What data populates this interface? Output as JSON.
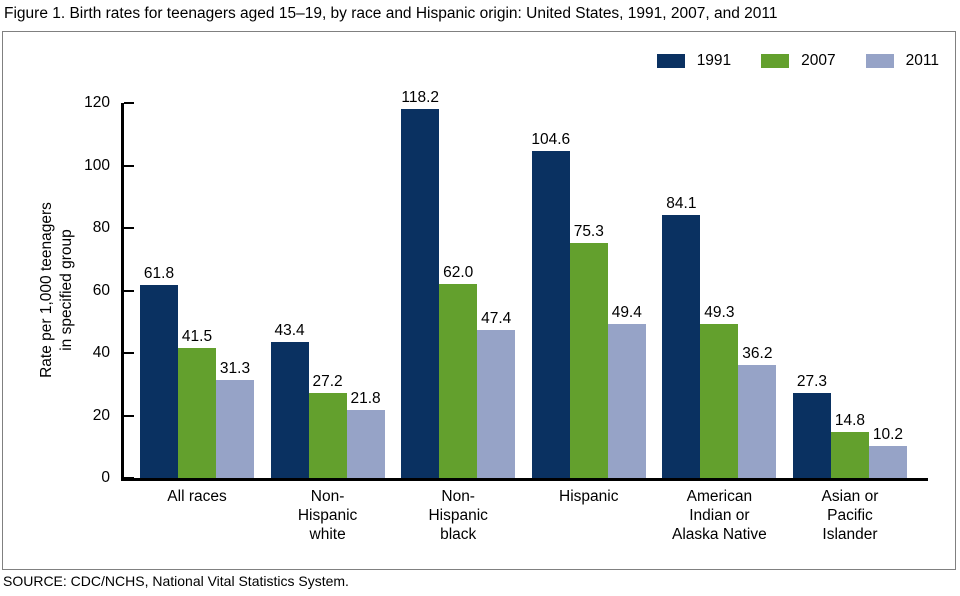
{
  "title": "Figure 1. Birth rates for teenagers aged 15–19, by race and Hispanic origin: United States, 1991, 2007, and 2011",
  "source": "SOURCE: CDC/NCHS, National Vital Statistics System.",
  "chart_data": {
    "type": "bar",
    "title": "Birth rates for teenagers aged 15–19, by race and Hispanic origin: United States, 1991, 2007, and 2011",
    "xlabel": "",
    "ylabel": "Rate per 1,000 teenagers\nin specified group",
    "ylim": [
      0,
      120
    ],
    "yticks": [
      0,
      20,
      40,
      60,
      80,
      100,
      120
    ],
    "grid": false,
    "legend_position": "top-right",
    "categories": [
      "All races",
      "Non-\nHispanic\nwhite",
      "Non-\nHispanic\nblack",
      "Hispanic",
      "American\nIndian or\nAlaska Native",
      "Asian or\nPacific\nIslander"
    ],
    "series": [
      {
        "name": "1991",
        "color": "#0A3161",
        "values": [
          61.8,
          43.4,
          118.2,
          104.6,
          84.1,
          27.3
        ]
      },
      {
        "name": "2007",
        "color": "#63A02D",
        "values": [
          41.5,
          27.2,
          62.0,
          75.3,
          49.3,
          14.8
        ]
      },
      {
        "name": "2011",
        "color": "#96A3C7",
        "values": [
          31.3,
          21.8,
          47.4,
          49.4,
          36.2,
          10.2
        ]
      }
    ],
    "value_label_decimals": 1
  }
}
